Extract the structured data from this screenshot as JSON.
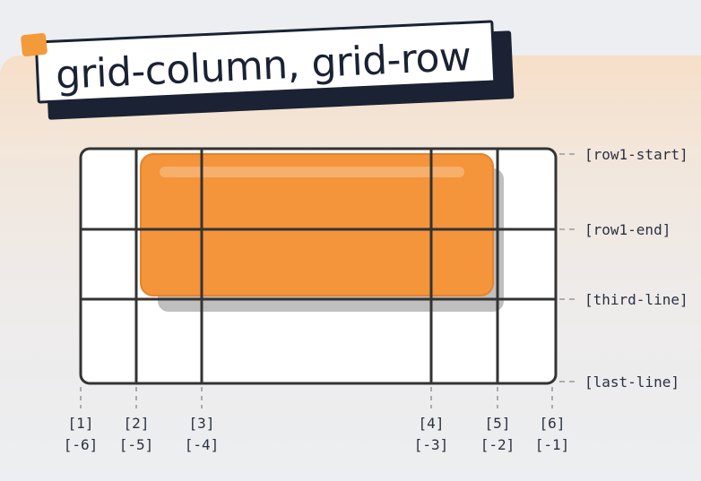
{
  "title": "grid-column, grid-row",
  "row_lines": [
    {
      "label": "[row1-start]"
    },
    {
      "label": "[row1-end]"
    },
    {
      "label": "[third-line]"
    },
    {
      "label": "[last-line]"
    }
  ],
  "column_lines": [
    {
      "positive": "[1]",
      "negative": "[-6]"
    },
    {
      "positive": "[2]",
      "negative": "[-5]"
    },
    {
      "positive": "[3]",
      "negative": "[-4]"
    },
    {
      "positive": "[4]",
      "negative": "[-3]"
    },
    {
      "positive": "[5]",
      "negative": "[-2]"
    },
    {
      "positive": "[6]",
      "negative": "[-1]"
    }
  ],
  "colors": {
    "item_fill": "#f4943b",
    "item_stroke": "#e8822a",
    "grid_line": "#333333",
    "label": "#2a3140",
    "accent": "#f39a3a"
  }
}
